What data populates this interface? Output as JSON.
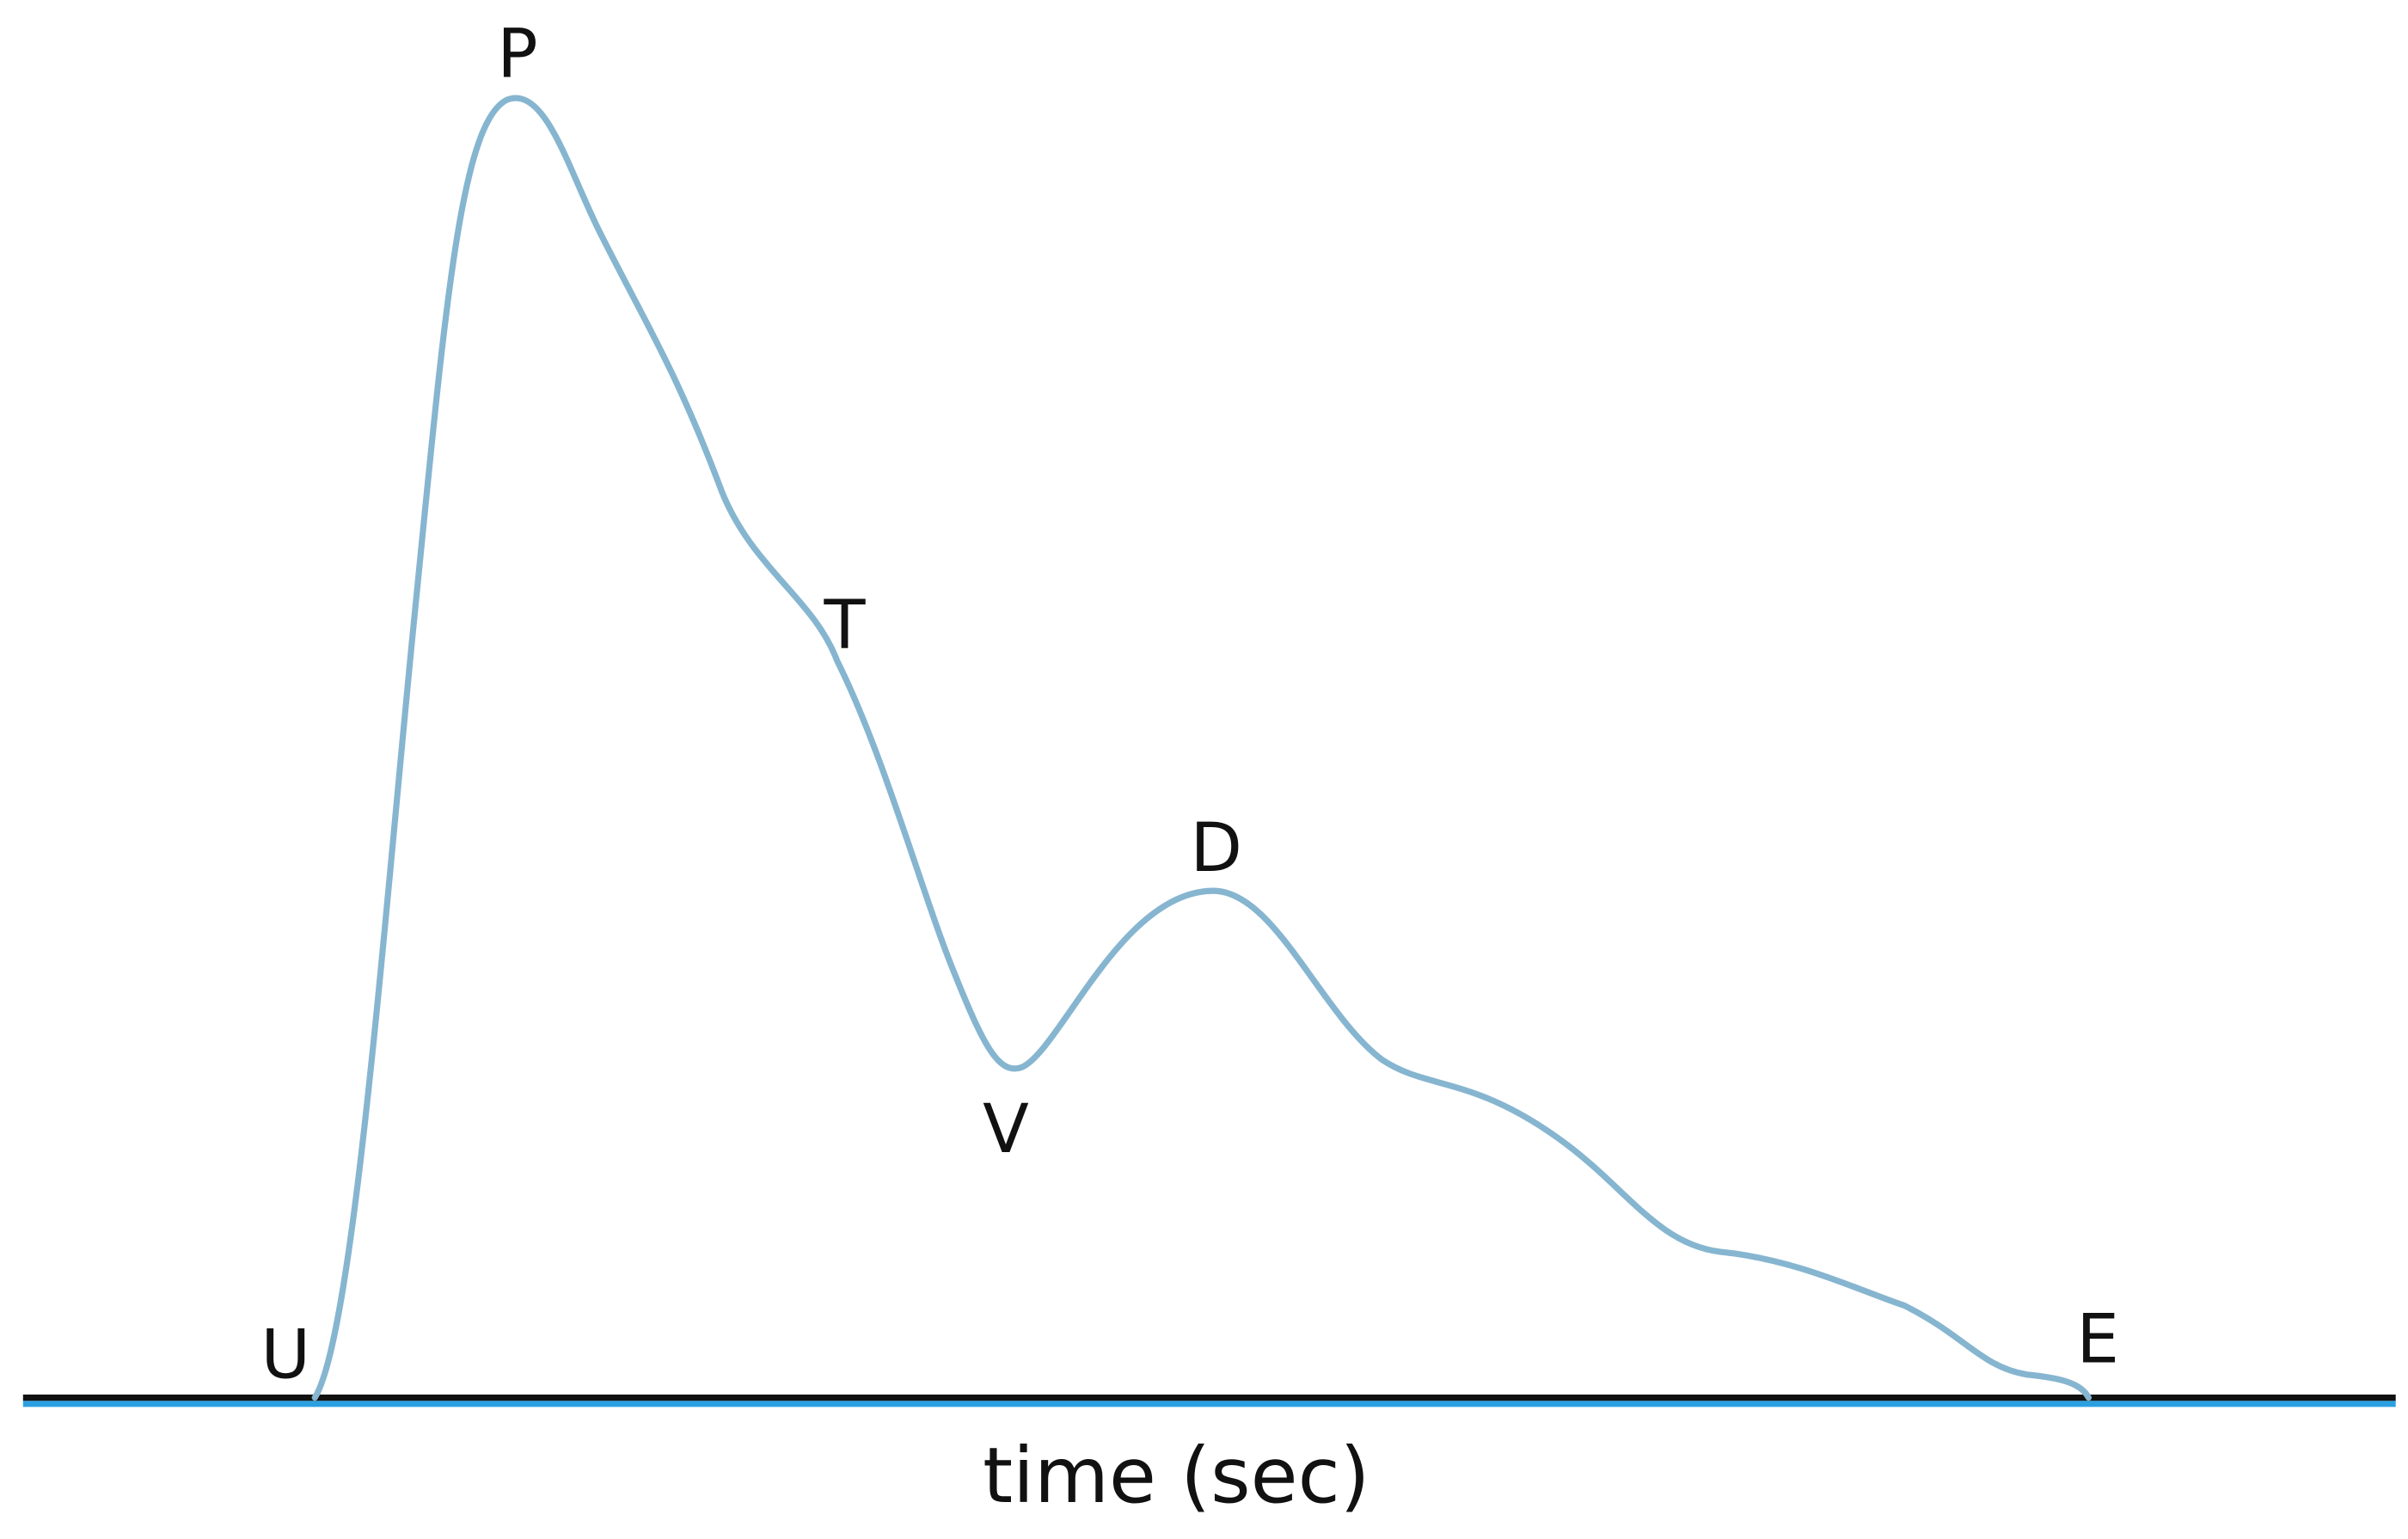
{
  "labels": {
    "peak": "P",
    "tidal": "T",
    "valley": "V",
    "dicrotic": "D",
    "upstroke": "U",
    "end": "E"
  },
  "axis_label": "time (sec)"
}
